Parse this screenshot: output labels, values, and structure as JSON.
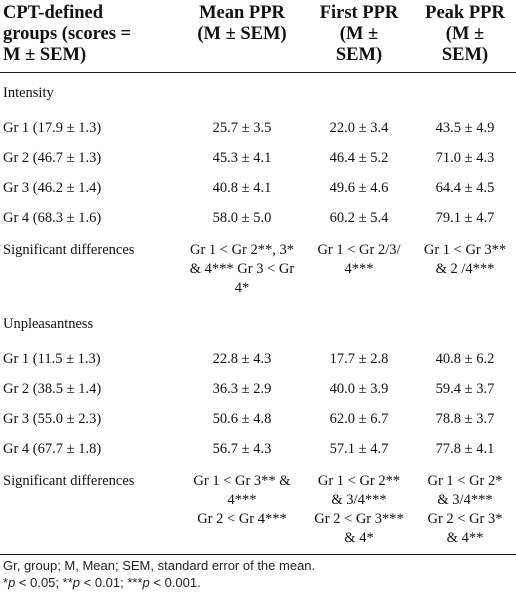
{
  "table": {
    "headers": [
      [
        "CPT-defined",
        "groups (scores =",
        "M ± SEM)"
      ],
      [
        "Mean PPR",
        "(M ± SEM)"
      ],
      [
        "First PPR",
        "(M ±",
        "SEM)"
      ],
      [
        "Peak PPR",
        "(M ±",
        "SEM)"
      ]
    ],
    "sections": [
      {
        "name": "Intensity",
        "rows": [
          {
            "label": "Gr 1 (17.9 ± 1.3)",
            "mean": "25.7 ± 3.5",
            "first": "22.0 ± 3.4",
            "peak": "43.5 ± 4.9"
          },
          {
            "label": "Gr 2 (46.7 ± 1.3)",
            "mean": "45.3 ± 4.1",
            "first": "46.4 ± 5.2",
            "peak": "71.0 ± 4.3"
          },
          {
            "label": "Gr 3 (46.2 ± 1.4)",
            "mean": "40.8 ± 4.1",
            "first": "49.6 ± 4.6",
            "peak": "64.4 ± 4.5"
          },
          {
            "label": "Gr 4 (68.3 ± 1.6)",
            "mean": "58.0 ± 5.0",
            "first": "60.2 ± 5.4",
            "peak": "79.1 ± 4.7"
          }
        ],
        "significant": {
          "label": "Significant differences",
          "mean": [
            "Gr 1 < Gr 2**, 3*",
            "& 4*** Gr 3 < Gr",
            "4*"
          ],
          "first": [
            "Gr 1 < Gr 2/3/",
            "4***"
          ],
          "peak": [
            "Gr 1 < Gr 3**",
            "& 2 /4***"
          ]
        }
      },
      {
        "name": "Unpleasantness",
        "rows": [
          {
            "label": "Gr 1 (11.5 ± 1.3)",
            "mean": "22.8 ± 4.3",
            "first": "17.7 ± 2.8",
            "peak": "40.8 ± 6.2"
          },
          {
            "label": "Gr 2 (38.5 ± 1.4)",
            "mean": "36.3 ± 2.9",
            "first": "40.0 ± 3.9",
            "peak": "59.4 ± 3.7"
          },
          {
            "label": "Gr 3 (55.0 ± 2.3)",
            "mean": "50.6 ± 4.8",
            "first": "62.0 ± 6.7",
            "peak": "78.8 ± 3.7"
          },
          {
            "label": "Gr 4 (67.7 ± 1.8)",
            "mean": "56.7 ± 4.3",
            "first": "57.1 ± 4.7",
            "peak": "77.8 ± 4.1"
          }
        ],
        "significant": {
          "label": "Significant differences",
          "mean": [
            "Gr 1 < Gr 3** &",
            "4***",
            "Gr 2 < Gr 4***"
          ],
          "first": [
            "Gr 1 < Gr 2**",
            "& 3/4***",
            "Gr 2 < Gr 3***",
            "& 4*"
          ],
          "peak": [
            "Gr 1 < Gr 2*",
            "& 3/4***",
            "Gr 2 < Gr 3*",
            "& 4**"
          ]
        }
      }
    ]
  },
  "footnote": {
    "abbreviations": "Gr, group; M, Mean; SEM, standard error of the mean.",
    "p1_sym": "*",
    "p1_var": "p",
    "p1_rest": " < 0.05; ",
    "p2_sym": "**",
    "p2_var": "p",
    "p2_rest": " < 0.01; ",
    "p3_sym": "***",
    "p3_var": "p",
    "p3_rest": " < 0.001."
  }
}
